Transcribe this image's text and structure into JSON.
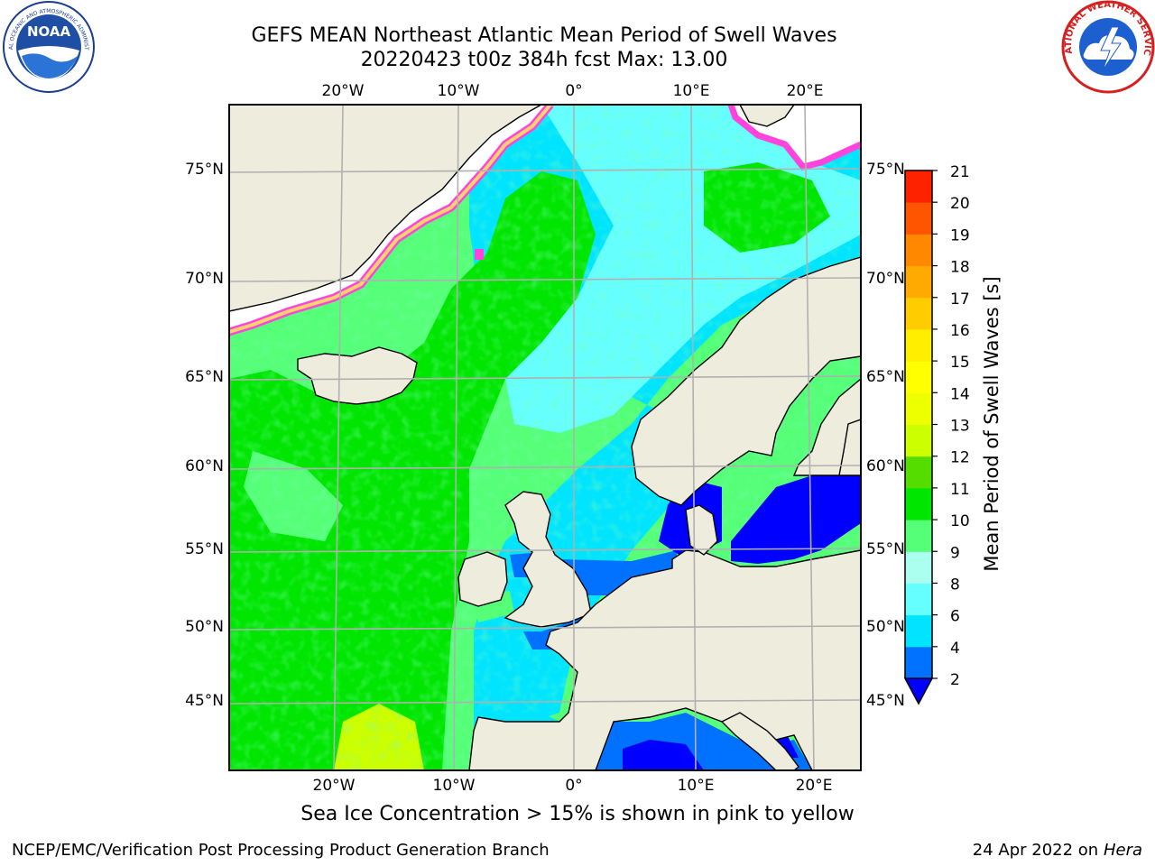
{
  "header": {
    "title_line1": "GEFS MEAN Northeast Atlantic Mean Period of Swell Waves",
    "title_line2": "20220423 t00z 384h fcst   Max: 13.00"
  },
  "logos": {
    "left": "noaa-logo",
    "left_text": "NOAA",
    "left_ring_text": "NATIONAL OCEANIC AND ATMOSPHERIC ADMINISTRATION",
    "left_bottom_text": "U.S. DEPARTMENT OF COMMERCE",
    "right": "nws-logo",
    "right_ring_text": "NATIONAL WEATHER SERVICE"
  },
  "map": {
    "lon_labels": [
      "20°W",
      "10°W",
      "0°",
      "10°E",
      "20°E"
    ],
    "lat_labels": [
      "75°N",
      "70°N",
      "65°N",
      "60°N",
      "55°N",
      "50°N",
      "45°N"
    ],
    "colors": {
      "land": "#eeecdc",
      "coast": "#000000",
      "grid": "#b0b0b0",
      "ice": "#ffffff",
      "ice_edge_pink": "#ff44dd",
      "ice_edge_yellow": "#ffd36b"
    }
  },
  "colorbar": {
    "label": "Mean Period of Swell Waves [s]",
    "ticks": [
      "2",
      "4",
      "6",
      "8",
      "9",
      "10",
      "11",
      "12",
      "13",
      "14",
      "15",
      "16",
      "17",
      "18",
      "19",
      "20",
      "21"
    ],
    "colors": [
      "#0072ff",
      "#00e4ff",
      "#66ffff",
      "#aaffee",
      "#55ff77",
      "#00e600",
      "#55dd00",
      "#ccff00",
      "#eeff00",
      "#ffff00",
      "#ffee00",
      "#ffcc00",
      "#ffaa00",
      "#ff8800",
      "#ff5500",
      "#ff2200"
    ],
    "under_color": "#0000ff"
  },
  "field_colors": {
    "deep_blue": "#0000ff",
    "blue": "#0072ff",
    "cyan": "#00e4ff",
    "light_cyan": "#66ffff",
    "pale": "#aaffee",
    "light_green": "#55ff77",
    "green": "#00e600",
    "yellow_green": "#ccff00"
  },
  "note": "Sea Ice Concentration > 15% is shown in pink to yellow",
  "footer": {
    "left": "NCEP/EMC/Verification Post Processing Product Generation Branch",
    "right_date": "24 Apr 2022 on ",
    "right_machine": "Hera"
  }
}
